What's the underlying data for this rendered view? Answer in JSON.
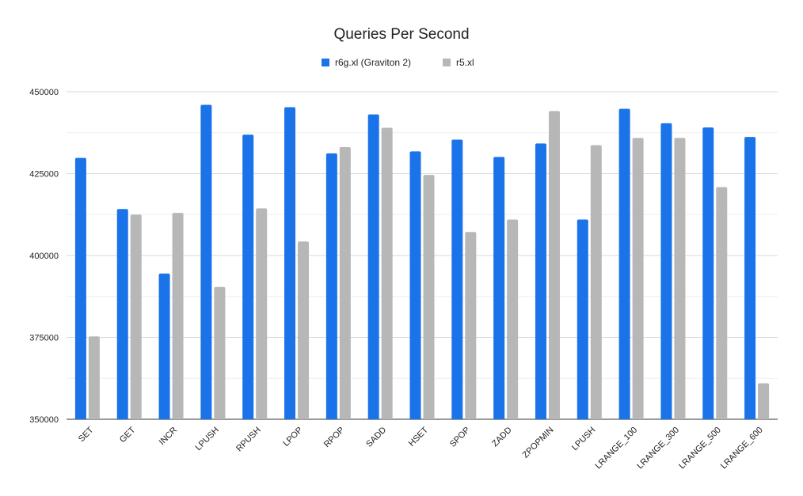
{
  "chart_data": {
    "type": "bar",
    "title": "Queries Per Second",
    "xlabel": "",
    "ylabel": "",
    "ylim": [
      350000,
      450000
    ],
    "yticks": [
      350000,
      375000,
      400000,
      425000,
      450000
    ],
    "grid": true,
    "legend_position": "top-center",
    "categories": [
      "SET",
      "GET",
      "INCR",
      "LPUSH",
      "RPUSH",
      "LPOP",
      "RPOP",
      "SADD",
      "HSET",
      "SPOP",
      "ZADD",
      "ZPOPMIN",
      "LPUSH",
      "LRANGE_100",
      "LRANGE_300",
      "LRANGE_500",
      "LRANGE_600"
    ],
    "series": [
      {
        "name": "r6g.xl (Graviton 2)",
        "color": "#1a73e8",
        "values": [
          429800,
          414200,
          394500,
          446000,
          436900,
          445300,
          431200,
          443100,
          431800,
          435400,
          430100,
          434200,
          411000,
          444800,
          440400,
          439100,
          436200
        ]
      },
      {
        "name": "r5.xl",
        "color": "#b7b7b7",
        "values": [
          375300,
          412500,
          413000,
          390400,
          414400,
          404300,
          433100,
          439000,
          424600,
          407200,
          411000,
          444100,
          433700,
          435900,
          435900,
          420900,
          361000
        ]
      }
    ]
  }
}
